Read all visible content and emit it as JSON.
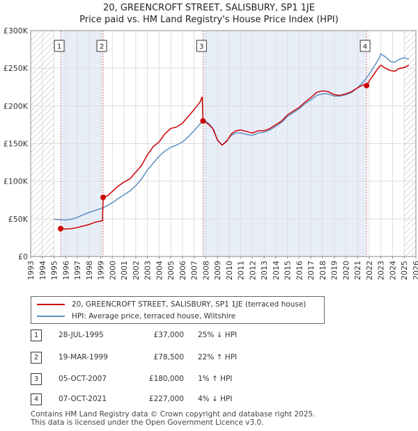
{
  "title_line1": "20, GREENCROFT STREET, SALISBURY, SP1 1JE",
  "title_line2": "Price paid vs. HM Land Registry's House Price Index (HPI)",
  "chart_data": {
    "type": "line",
    "xlim": [
      1993,
      2026
    ],
    "ylim": [
      0,
      300000
    ],
    "x_ticks": [
      "1993",
      "1994",
      "1995",
      "1996",
      "1997",
      "1998",
      "1999",
      "2000",
      "2001",
      "2002",
      "2003",
      "2004",
      "2005",
      "2006",
      "2007",
      "2008",
      "2009",
      "2010",
      "2011",
      "2012",
      "2013",
      "2014",
      "2015",
      "2016",
      "2017",
      "2018",
      "2019",
      "2020",
      "2021",
      "2022",
      "2023",
      "2024",
      "2025",
      "2026"
    ],
    "y_ticks": [
      {
        "value": 0,
        "label": "£0"
      },
      {
        "value": 50000,
        "label": "£50K"
      },
      {
        "value": 100000,
        "label": "£100K"
      },
      {
        "value": 150000,
        "label": "£150K"
      },
      {
        "value": 200000,
        "label": "£200K"
      },
      {
        "value": 250000,
        "label": "£250K"
      },
      {
        "value": 300000,
        "label": "£300K"
      }
    ],
    "hatched_ranges": [
      [
        1993,
        1995.0
      ],
      [
        2025.0,
        2026
      ]
    ],
    "shaded_ranges": [
      [
        1995.57,
        1999.21
      ],
      [
        2007.76,
        2021.77
      ]
    ],
    "series": [
      {
        "name": "20, GREENCROFT STREET, SALISBURY, SP1 1JE (terraced house)",
        "color": "#cc0000",
        "points": [
          [
            1995.57,
            37000
          ],
          [
            1996.0,
            36500
          ],
          [
            1996.5,
            37000
          ],
          [
            1997.0,
            38500
          ],
          [
            1997.5,
            40500
          ],
          [
            1998.0,
            42500
          ],
          [
            1998.5,
            45500
          ],
          [
            1999.15,
            47500
          ],
          [
            1999.21,
            78500
          ],
          [
            1999.6,
            81000
          ],
          [
            2000.0,
            86500
          ],
          [
            2000.5,
            93500
          ],
          [
            2001.0,
            99000
          ],
          [
            2001.5,
            103000
          ],
          [
            2002.0,
            112000
          ],
          [
            2002.5,
            121000
          ],
          [
            2003.0,
            135000
          ],
          [
            2003.5,
            146000
          ],
          [
            2004.0,
            152000
          ],
          [
            2004.5,
            163000
          ],
          [
            2005.0,
            170000
          ],
          [
            2005.5,
            172000
          ],
          [
            2006.0,
            177000
          ],
          [
            2006.5,
            186000
          ],
          [
            2007.0,
            195000
          ],
          [
            2007.5,
            205000
          ],
          [
            2007.7,
            212000
          ],
          [
            2007.76,
            180000
          ],
          [
            2008.2,
            176000
          ],
          [
            2008.6,
            170000
          ],
          [
            2009.0,
            155000
          ],
          [
            2009.4,
            148000
          ],
          [
            2009.8,
            153000
          ],
          [
            2010.2,
            163000
          ],
          [
            2010.6,
            167000
          ],
          [
            2011.0,
            168000
          ],
          [
            2011.5,
            166000
          ],
          [
            2012.0,
            164000
          ],
          [
            2012.5,
            167000
          ],
          [
            2013.0,
            167000
          ],
          [
            2013.5,
            170000
          ],
          [
            2014.0,
            175000
          ],
          [
            2014.5,
            180000
          ],
          [
            2015.0,
            188000
          ],
          [
            2015.5,
            193000
          ],
          [
            2016.0,
            198000
          ],
          [
            2016.5,
            205000
          ],
          [
            2017.0,
            211000
          ],
          [
            2017.5,
            218000
          ],
          [
            2018.0,
            220000
          ],
          [
            2018.5,
            219000
          ],
          [
            2019.0,
            215000
          ],
          [
            2019.5,
            214000
          ],
          [
            2020.0,
            216000
          ],
          [
            2020.5,
            219000
          ],
          [
            2021.0,
            224000
          ],
          [
            2021.5,
            228000
          ],
          [
            2021.77,
            227000
          ],
          [
            2022.0,
            233000
          ],
          [
            2022.4,
            242000
          ],
          [
            2022.8,
            251000
          ],
          [
            2023.0,
            254000
          ],
          [
            2023.4,
            250000
          ],
          [
            2023.8,
            247000
          ],
          [
            2024.2,
            246000
          ],
          [
            2024.6,
            250000
          ],
          [
            2025.0,
            251000
          ],
          [
            2025.4,
            254000
          ]
        ]
      },
      {
        "name": "HPI: Average price, terraced house, Wiltshire",
        "color": "#5b8ec4",
        "points": [
          [
            1995.0,
            49500
          ],
          [
            1995.5,
            49000
          ],
          [
            1996.0,
            48500
          ],
          [
            1996.5,
            49500
          ],
          [
            1997.0,
            52000
          ],
          [
            1997.5,
            55500
          ],
          [
            1998.0,
            58500
          ],
          [
            1998.5,
            61000
          ],
          [
            1999.0,
            63500
          ],
          [
            1999.5,
            67000
          ],
          [
            2000.0,
            71500
          ],
          [
            2000.5,
            77000
          ],
          [
            2001.0,
            82000
          ],
          [
            2001.5,
            87000
          ],
          [
            2002.0,
            94000
          ],
          [
            2002.5,
            103000
          ],
          [
            2003.0,
            115000
          ],
          [
            2003.5,
            124000
          ],
          [
            2004.0,
            133000
          ],
          [
            2004.5,
            140000
          ],
          [
            2005.0,
            145000
          ],
          [
            2005.5,
            148000
          ],
          [
            2006.0,
            152000
          ],
          [
            2006.5,
            159000
          ],
          [
            2007.0,
            167000
          ],
          [
            2007.5,
            176000
          ],
          [
            2007.9,
            181000
          ],
          [
            2008.3,
            176000
          ],
          [
            2008.7,
            168000
          ],
          [
            2009.0,
            154000
          ],
          [
            2009.4,
            148000
          ],
          [
            2009.8,
            154000
          ],
          [
            2010.2,
            161000
          ],
          [
            2010.6,
            164000
          ],
          [
            2011.0,
            164000
          ],
          [
            2011.5,
            162000
          ],
          [
            2012.0,
            161000
          ],
          [
            2012.5,
            164000
          ],
          [
            2013.0,
            165000
          ],
          [
            2013.5,
            168000
          ],
          [
            2014.0,
            173000
          ],
          [
            2014.5,
            178000
          ],
          [
            2015.0,
            186000
          ],
          [
            2015.5,
            191000
          ],
          [
            2016.0,
            196000
          ],
          [
            2016.5,
            203000
          ],
          [
            2017.0,
            208000
          ],
          [
            2017.5,
            214000
          ],
          [
            2018.0,
            216000
          ],
          [
            2018.5,
            216000
          ],
          [
            2019.0,
            213000
          ],
          [
            2019.5,
            213000
          ],
          [
            2020.0,
            215000
          ],
          [
            2020.5,
            218000
          ],
          [
            2021.0,
            224000
          ],
          [
            2021.5,
            232000
          ],
          [
            2022.0,
            242000
          ],
          [
            2022.4,
            252000
          ],
          [
            2022.8,
            262000
          ],
          [
            2023.0,
            269000
          ],
          [
            2023.4,
            265000
          ],
          [
            2023.8,
            259000
          ],
          [
            2024.2,
            258000
          ],
          [
            2024.6,
            262000
          ],
          [
            2025.0,
            264000
          ],
          [
            2025.4,
            262000
          ]
        ]
      }
    ],
    "sales": [
      {
        "num": "1",
        "x": 1995.57,
        "price": 37000
      },
      {
        "num": "2",
        "x": 1999.21,
        "price": 78500
      },
      {
        "num": "3",
        "x": 2007.76,
        "price": 180000
      },
      {
        "num": "4",
        "x": 2021.77,
        "price": 227000
      }
    ]
  },
  "legend": {
    "property_label": "20, GREENCROFT STREET, SALISBURY, SP1 1JE (terraced house)",
    "hpi_label": "HPI: Average price, terraced house, Wiltshire"
  },
  "transactions": [
    {
      "num": "1",
      "date": "28-JUL-1995",
      "price": "£37,000",
      "hpi": "25% ↓ HPI"
    },
    {
      "num": "2",
      "date": "19-MAR-1999",
      "price": "£78,500",
      "hpi": "22% ↑ HPI"
    },
    {
      "num": "3",
      "date": "05-OCT-2007",
      "price": "£180,000",
      "hpi": "1% ↑ HPI"
    },
    {
      "num": "4",
      "date": "07-OCT-2021",
      "price": "£227,000",
      "hpi": "4% ↓ HPI"
    }
  ],
  "footer_line1": "Contains HM Land Registry data © Crown copyright and database right 2025.",
  "footer_line2": "This data is licensed under the Open Government Licence v3.0.",
  "colors": {
    "property": "#cc0000",
    "hpi": "#5b8ec4",
    "shade": "#e8eef8"
  }
}
